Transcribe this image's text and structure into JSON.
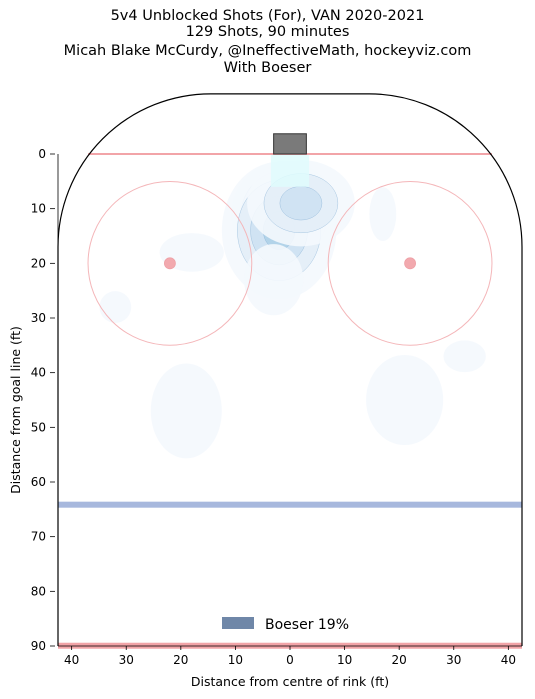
{
  "chart_data": {
    "type": "heatmap",
    "title_lines": [
      "5v4 Unblocked Shots (For), VAN 2020-2021",
      "129 Shots, 90 minutes",
      "Micah Blake McCurdy, @IneffectiveMath, hockeyviz.com",
      "With Boeser"
    ],
    "xlabel": "Distance from centre of rink (ft)",
    "ylabel": "Distance from goal line (ft)",
    "xlim": [
      -42.5,
      42.5
    ],
    "ylim": [
      -11,
      90
    ],
    "y_inverted": true,
    "x_ticks": [
      -40,
      -30,
      -20,
      -10,
      0,
      10,
      20,
      30,
      40
    ],
    "x_tick_labels": [
      "40",
      "30",
      "20",
      "10",
      "0",
      "10",
      "20",
      "30",
      "40"
    ],
    "y_ticks": [
      0,
      10,
      20,
      30,
      40,
      50,
      60,
      70,
      80,
      90
    ],
    "y_tick_labels": [
      "0",
      "10",
      "20",
      "30",
      "40",
      "50",
      "60",
      "70",
      "80",
      "90"
    ],
    "legend": [
      {
        "label": "Boeser 19%",
        "color": "#6f87a8"
      }
    ],
    "legend_position": "bottom-center",
    "colors": {
      "goal_line": "#f2a4a8",
      "blue_line": "#a7b8dd",
      "faceoff_circle": "#f4b6b9",
      "faceoff_dot": "#f2a9ae",
      "goal": "#7a7a7a",
      "crease": "#dffcfd"
    },
    "density_levels": [
      0.05,
      0.14,
      0.26,
      0.38,
      0.5,
      0.62,
      0.74,
      0.86,
      0.95
    ],
    "density_colors": [
      "#f4f8fd",
      "#e4eef8",
      "#cfe2f2",
      "#b0d2e8",
      "#88bedc",
      "#5e9fcf",
      "#3a80bf",
      "#1f5fa6",
      "#0c3f86"
    ],
    "density_hotspots": [
      {
        "x": -1,
        "y": 11,
        "sx": 4,
        "sy": 4,
        "w": 1.0
      },
      {
        "x": -2,
        "y": 14,
        "sx": 5,
        "sy": 6,
        "w": 0.45
      },
      {
        "x": 2,
        "y": 9,
        "sx": 5,
        "sy": 4,
        "w": 0.35
      },
      {
        "x": -18,
        "y": 18,
        "sx": 5,
        "sy": 3,
        "w": 0.1
      },
      {
        "x": -32,
        "y": 28,
        "sx": 3,
        "sy": 3,
        "w": 0.08
      },
      {
        "x": -19,
        "y": 47,
        "sx": 6,
        "sy": 8,
        "w": 0.09
      },
      {
        "x": 21,
        "y": 45,
        "sx": 6,
        "sy": 7,
        "w": 0.1
      },
      {
        "x": 32,
        "y": 37,
        "sx": 4,
        "sy": 3,
        "w": 0.08
      },
      {
        "x": 17,
        "y": 11,
        "sx": 3,
        "sy": 6,
        "w": 0.07
      },
      {
        "x": -3,
        "y": 23,
        "sx": 5,
        "sy": 6,
        "w": 0.09
      }
    ]
  }
}
